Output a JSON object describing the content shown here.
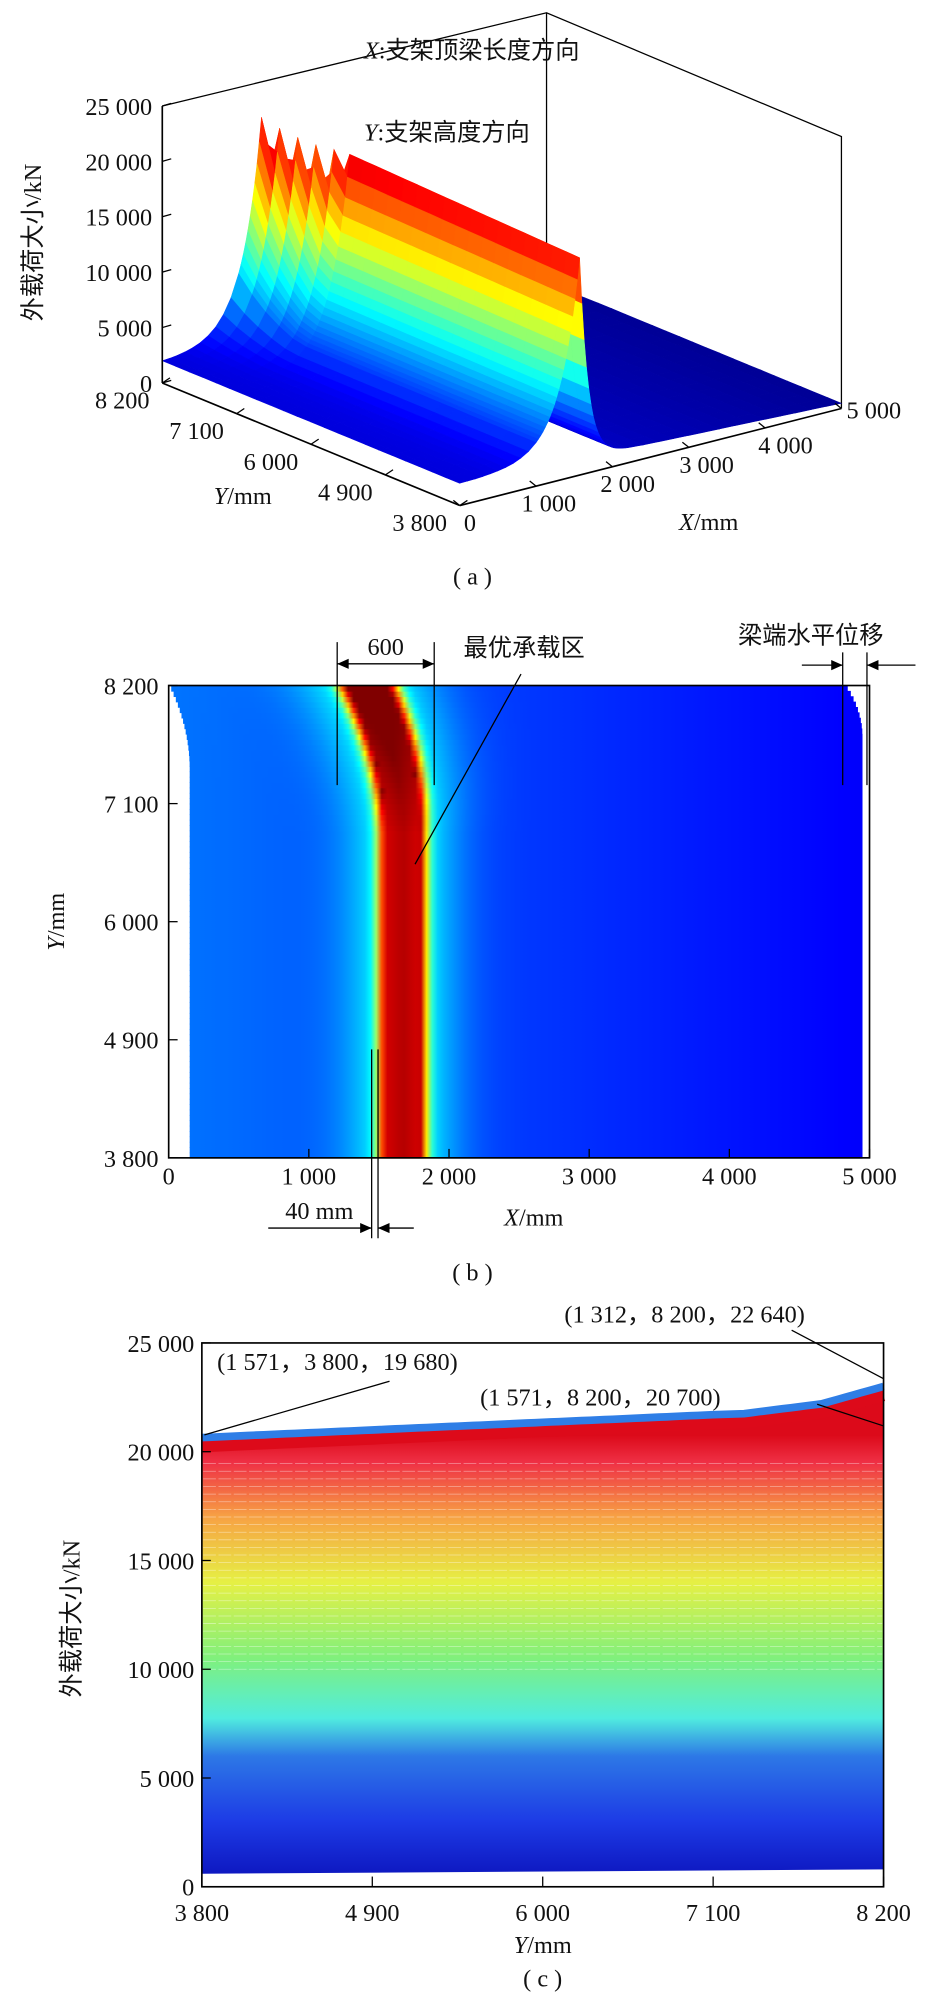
{
  "chart_data": [
    {
      "panel": "a",
      "type": "surface",
      "caption": "( a )",
      "legend": {
        "x_var": "X",
        "x_desc": ":支架顶梁长度方向",
        "y_var": "Y",
        "y_desc": ":支架高度方向"
      },
      "zlabel": "外载荷大小/kN",
      "xlabel_var": "X",
      "xlabel_unit": "/mm",
      "ylabel_var": "Y",
      "ylabel_unit": "/mm",
      "xlim": [
        0,
        5000
      ],
      "ylim": [
        3800,
        8200
      ],
      "zlim": [
        0,
        25000
      ],
      "xticks": [
        "0",
        "1 000",
        "2 000",
        "3 000",
        "4 000",
        "5 000"
      ],
      "xtick_values": [
        0,
        1000,
        2000,
        3000,
        4000,
        5000
      ],
      "yticks": [
        "8 200",
        "7 100",
        "6 000",
        "4 900",
        "3 800"
      ],
      "ytick_values": [
        8200,
        7100,
        6000,
        4900,
        3800
      ],
      "zticks": [
        "0",
        "5 000",
        "10 000",
        "15 000",
        "20 000",
        "25 000"
      ],
      "ztick_values": [
        0,
        5000,
        10000,
        15000,
        20000,
        25000
      ],
      "colormap": "jet",
      "peak_points": [
        {
          "x": 1571,
          "y": 3800,
          "z": 19680
        },
        {
          "x": 1571,
          "y": 8200,
          "z": 20700
        },
        {
          "x": 1312,
          "y": 8200,
          "z": 22640
        }
      ],
      "approx_profile_at_y3800": {
        "x": [
          0,
          500,
          1000,
          1300,
          1571,
          1700,
          1900,
          2500,
          3500,
          5000
        ],
        "z": [
          2000,
          2600,
          4500,
          9500,
          19680,
          9000,
          2500,
          1500,
          1100,
          600
        ]
      }
    },
    {
      "panel": "b",
      "type": "heatmap",
      "caption": "( b )",
      "xlabel_var": "X",
      "xlabel_unit": "/mm",
      "ylabel_var": "Y",
      "ylabel_unit": "/mm",
      "xlim": [
        0,
        5000
      ],
      "ylim": [
        3800,
        8200
      ],
      "xticks": [
        "0",
        "1 000",
        "2 000",
        "3 000",
        "4 000",
        "5 000"
      ],
      "xtick_values": [
        0,
        1000,
        2000,
        3000,
        4000,
        5000
      ],
      "yticks": [
        "8 200",
        "7 100",
        "6 000",
        "4 900",
        "3 800"
      ],
      "ytick_values": [
        8200,
        7100,
        6000,
        4900,
        3800
      ],
      "colormap": "jet",
      "annotations": {
        "width_600": "600",
        "optimal_zone": "最优承载区",
        "beam_end_disp": "梁端水平位移",
        "shift_40": "40 mm"
      }
    },
    {
      "panel": "c",
      "type": "area",
      "caption": "( c )",
      "xlabel_var": "Y",
      "xlabel_unit": "/mm",
      "ylabel": "外载荷大小/kN",
      "xlim": [
        3800,
        8200
      ],
      "ylim": [
        0,
        25000
      ],
      "xticks": [
        "3 800",
        "4 900",
        "6 000",
        "7 100",
        "8 200"
      ],
      "xtick_values": [
        3800,
        4900,
        6000,
        7100,
        8200
      ],
      "yticks": [
        "0",
        "5 000",
        "10 000",
        "15 000",
        "20 000",
        "25 000"
      ],
      "ytick_values": [
        0,
        5000,
        10000,
        15000,
        20000,
        25000
      ],
      "colormap": "jet",
      "envelope": {
        "y": [
          3800,
          4900,
          6000,
          7100,
          7300,
          7800,
          8200
        ],
        "load": [
          20650,
          21000,
          21350,
          21700,
          21750,
          22200,
          23000
        ]
      },
      "annotations": [
        {
          "label": "(1 571，3 800，19 680)"
        },
        {
          "label": "(1 312，8 200，22 640)"
        },
        {
          "label": "(1 571，8 200，20 700)"
        }
      ]
    }
  ]
}
